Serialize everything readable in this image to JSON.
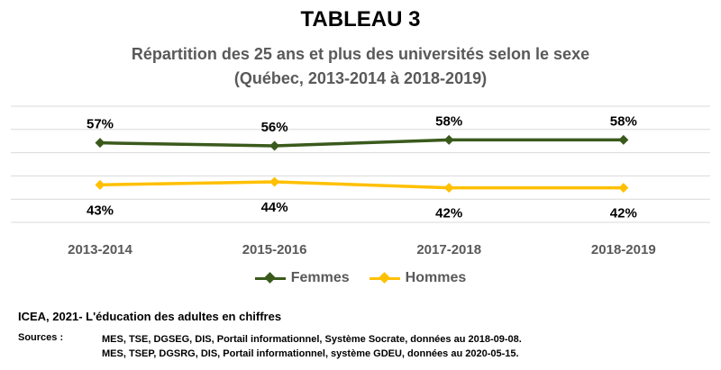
{
  "header": {
    "title": "TABLEAU 3",
    "subtitle_line1": "Répartition des 25 ans et plus des universités selon le sexe",
    "subtitle_line2": "(Québec, 2013-2014 à 2018-2019)"
  },
  "colors": {
    "femmes": "#3a5a1c",
    "hommes": "#ffc000",
    "gridline": "#d9d9d9",
    "axis_text": "#595959"
  },
  "chart_data": {
    "type": "line",
    "title": "Répartition des 25 ans et plus des universités selon le sexe",
    "categories": [
      "2013-2014",
      "2015-2016",
      "2017-2018",
      "2018-2019"
    ],
    "series": [
      {
        "name": "Femmes",
        "values": [
          57,
          56,
          58,
          58
        ],
        "labels": [
          "57%",
          "56%",
          "58%",
          "58%"
        ],
        "color": "#3a5a1c",
        "label_position": "above"
      },
      {
        "name": "Hommes",
        "values": [
          43,
          44,
          42,
          42
        ],
        "labels": [
          "43%",
          "44%",
          "42%",
          "42%"
        ],
        "color": "#ffc000",
        "label_position": "below"
      }
    ],
    "ylim": [
      0,
      100
    ],
    "grid": true,
    "legend_position": "bottom"
  },
  "legend": {
    "items": [
      {
        "label": "Femmes",
        "color": "#3a5a1c"
      },
      {
        "label": "Hommes",
        "color": "#ffc000"
      }
    ]
  },
  "footer": {
    "source_title": "ICEA, 2021- L'éducation des adultes en chiffres",
    "sources_label": "Sources :",
    "source_line1": "MES, TSE, DGSEG, DIS, Portail informationnel, Système Socrate, données au 2018-09-08.",
    "source_line2": "MES, TSEP, DGSRG, DIS, Portail informationnel, système GDEU, données au 2020-05-15."
  }
}
